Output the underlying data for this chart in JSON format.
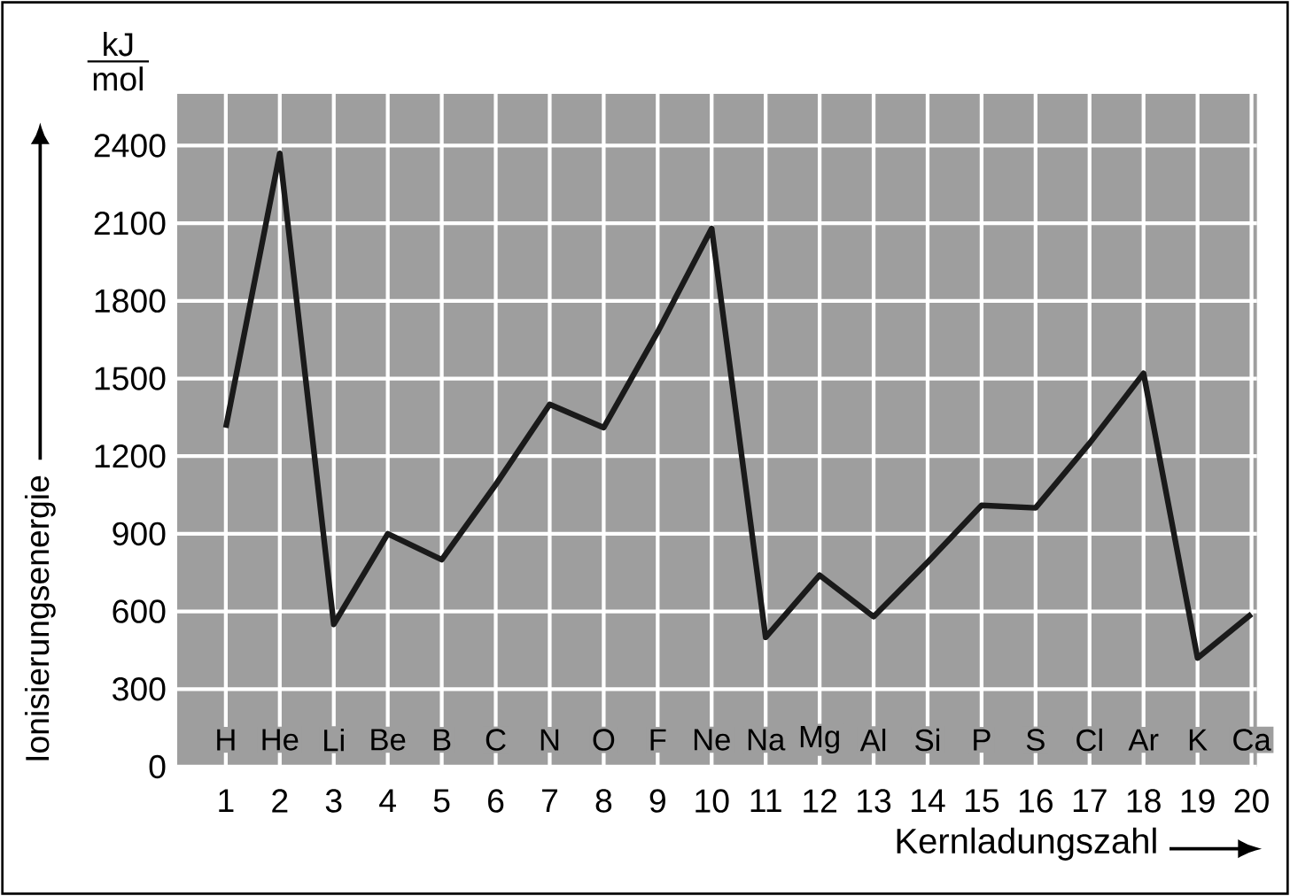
{
  "chart_data": {
    "type": "line",
    "xlabel": "Kernladungszahl",
    "ylabel": "Ionisierungsenergie",
    "x": [
      1,
      2,
      3,
      4,
      5,
      6,
      7,
      8,
      9,
      10,
      11,
      12,
      13,
      14,
      15,
      16,
      17,
      18,
      19,
      20
    ],
    "series": [
      {
        "color": "#1a1a1a",
        "values": [
          1310,
          2370,
          550,
          900,
          800,
          1090,
          1400,
          1310,
          1680,
          2080,
          500,
          740,
          580,
          790,
          1010,
          1000,
          1250,
          1520,
          420,
          590
        ]
      }
    ],
    "xlim": [
      0.1,
      20.1
    ],
    "ylim": [
      0,
      2600
    ],
    "xticks": [
      1,
      2,
      3,
      4,
      5,
      6,
      7,
      8,
      9,
      10,
      11,
      12,
      13,
      14,
      15,
      16,
      17,
      18,
      19,
      20
    ],
    "yticks": [
      0,
      300,
      600,
      900,
      1200,
      1500,
      1800,
      2100,
      2400
    ],
    "grid": true,
    "marker": "none",
    "line_style": "solid",
    "annotations": [
      "kJ",
      "mol",
      "H",
      "He",
      "Li",
      "Be",
      "B",
      "C",
      "N",
      "O",
      "F",
      "Ne",
      "Na",
      "Mg",
      "Al",
      "Si",
      "P",
      "S",
      "Cl",
      "Ar",
      "K",
      "Ca"
    ]
  }
}
